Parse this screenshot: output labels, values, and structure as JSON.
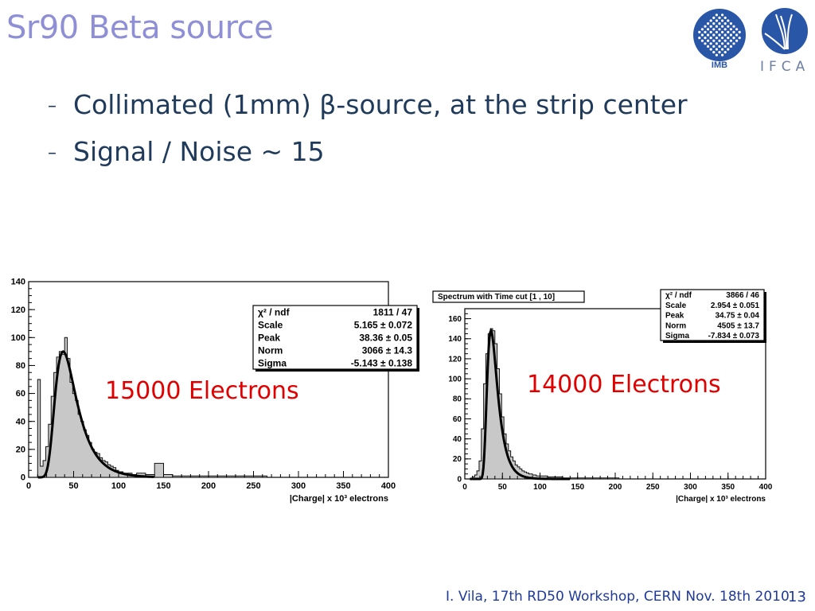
{
  "slide": {
    "title": "Sr90 Beta source",
    "bullets": [
      {
        "dash": "–",
        "text": "Collimated (1mm) β-source, at the strip center"
      },
      {
        "dash": "–",
        "text": "Signal / Noise  ~ 15"
      }
    ],
    "footer": "I. Vila, 17th RD50 Workshop, CERN  Nov. 18th 2010",
    "page_number": "13",
    "logos": {
      "imb_label": "IMB",
      "ifca_label": "IFCA"
    },
    "colors": {
      "title": "#8f8fd6",
      "body": "#1f3a5a",
      "annotation": "#e00000",
      "footer": "#1f3a9a"
    }
  },
  "chart_data": [
    {
      "type": "histogram",
      "title": "",
      "xlabel": "|Charge| x 10³ electrons",
      "ylabel": "",
      "xlim": [
        0,
        400
      ],
      "ylim": [
        0,
        140
      ],
      "xticks": [
        0,
        50,
        100,
        150,
        200,
        250,
        300,
        350,
        400
      ],
      "yticks": [
        0,
        20,
        40,
        60,
        80,
        100,
        120,
        140
      ],
      "annotation": "15000 Electrons",
      "stats": [
        {
          "name": "χ² / ndf",
          "value": "1811 / 47"
        },
        {
          "name": "Scale",
          "value": "5.165 ± 0.072"
        },
        {
          "name": "Peak",
          "value": "38.36 ± 0.05"
        },
        {
          "name": "Norm",
          "value": "3066 ± 14.3"
        },
        {
          "name": "Sigma",
          "value": "-5.143 ± 0.138"
        }
      ],
      "fit": {
        "peak": 38.36,
        "scale": 5.165,
        "max": 90
      },
      "bins": {
        "x": [
          10,
          13,
          16,
          19,
          22,
          25,
          28,
          31,
          34,
          37,
          40,
          43,
          46,
          49,
          52,
          55,
          58,
          61,
          64,
          67,
          70,
          73,
          76,
          79,
          82,
          85,
          88,
          91,
          94,
          97,
          100,
          105,
          110,
          115,
          120,
          130,
          140,
          150,
          160,
          180,
          200,
          230,
          260
        ],
        "y": [
          70,
          8,
          12,
          22,
          38,
          58,
          75,
          86,
          90,
          88,
          100,
          85,
          68,
          60,
          55,
          45,
          40,
          34,
          30,
          25,
          20,
          18,
          17,
          14,
          12,
          11,
          9,
          8,
          7,
          5,
          4,
          3,
          3,
          2,
          3,
          2,
          10,
          2,
          1,
          1,
          1,
          1,
          1
        ]
      }
    },
    {
      "type": "histogram",
      "title": "Spectrum with Time cut [1 , 10]",
      "xlabel": "|Charge| x 10³ electrons",
      "ylabel": "",
      "xlim": [
        0,
        400
      ],
      "ylim": [
        0,
        170
      ],
      "xticks": [
        0,
        50,
        100,
        150,
        200,
        250,
        300,
        350,
        400
      ],
      "yticks": [
        0,
        20,
        40,
        60,
        80,
        100,
        120,
        140,
        160
      ],
      "annotation": "14000 Electrons",
      "stats": [
        {
          "name": "χ² / ndf",
          "value": "3866 / 46"
        },
        {
          "name": "Scale",
          "value": "2.954 ± 0.051"
        },
        {
          "name": "Peak",
          "value": "34.75 ± 0.04"
        },
        {
          "name": "Norm",
          "value": "4505 ± 13.7"
        },
        {
          "name": "Sigma",
          "value": "-7.834 ± 0.073"
        }
      ],
      "fit": {
        "peak": 34.75,
        "scale": 2.954,
        "max": 148
      },
      "bins": {
        "x": [
          10,
          13,
          16,
          19,
          22,
          25,
          28,
          31,
          34,
          37,
          40,
          43,
          46,
          49,
          52,
          55,
          58,
          61,
          64,
          67,
          70,
          73,
          76,
          79,
          82,
          85,
          90,
          95,
          100,
          110,
          120,
          130,
          150,
          170,
          200
        ],
        "y": [
          2,
          4,
          8,
          18,
          50,
          95,
          125,
          145,
          150,
          148,
          135,
          110,
          85,
          62,
          45,
          35,
          28,
          22,
          18,
          14,
          12,
          10,
          8,
          7,
          6,
          5,
          4,
          3,
          3,
          2,
          2,
          1,
          1,
          1,
          1
        ]
      }
    }
  ]
}
